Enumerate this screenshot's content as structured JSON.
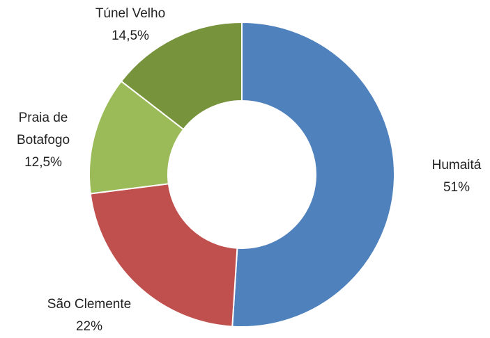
{
  "chart_data": {
    "type": "pie",
    "categories": [
      "Humaitá",
      "São Clemente",
      "Praia de Botafogo",
      "Túnel Velho"
    ],
    "values": [
      51,
      22,
      12.5,
      14.5
    ],
    "value_labels": [
      "51%",
      "22%",
      "12,5%",
      "14,5%"
    ],
    "colors": [
      "#4f81bd",
      "#c0504d",
      "#9bbb59",
      "#77933c"
    ]
  }
}
